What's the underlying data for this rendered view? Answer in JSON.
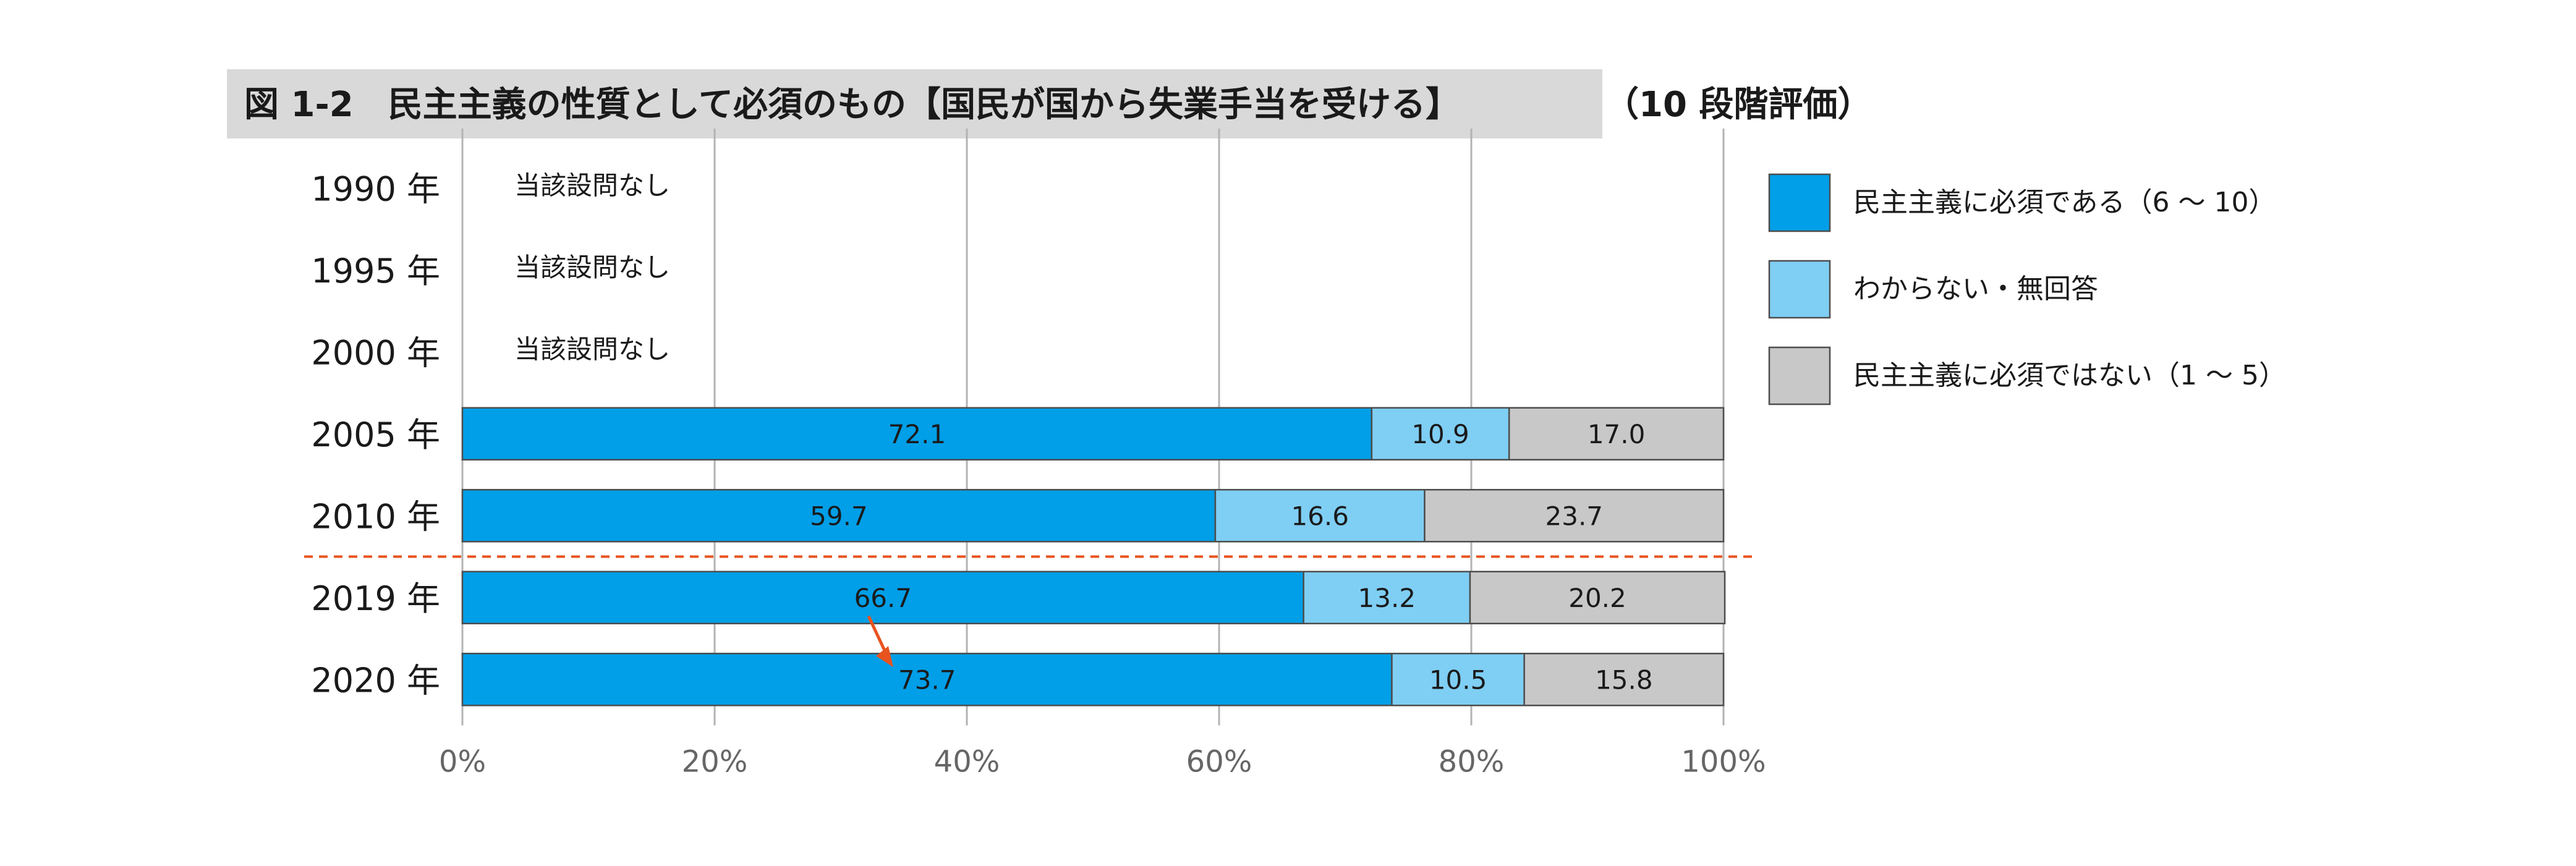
{
  "title": "図 1-2　民主主義の性質として必須のもの【国民が国から失業手当を受ける】",
  "title_suffix": "（10 段階評価）",
  "chart_data": {
    "type": "bar",
    "orientation": "horizontal",
    "stacked": true,
    "categories": [
      "1990 年",
      "1995 年",
      "2000 年",
      "2005 年",
      "2010 年",
      "2019 年",
      "2020 年"
    ],
    "notes": [
      "当該設問なし",
      "当該設問なし",
      "当該設問なし",
      null,
      null,
      null,
      null
    ],
    "series": [
      {
        "name": "民主主義に必須である（6 ～ 10）",
        "color": "#009fe8",
        "values": [
          null,
          null,
          null,
          72.1,
          59.7,
          66.7,
          73.7
        ]
      },
      {
        "name": "わからない・無回答",
        "color": "#7fcef4",
        "values": [
          null,
          null,
          null,
          10.9,
          16.6,
          13.2,
          10.5
        ]
      },
      {
        "name": "民主主義に必須ではない（1 ～ 5）",
        "color": "#c8c8c8",
        "values": [
          null,
          null,
          null,
          17.0,
          23.7,
          20.2,
          15.8
        ]
      }
    ],
    "xlim": [
      0,
      100
    ],
    "x_ticks": [
      "0%",
      "20%",
      "40%",
      "60%",
      "80%",
      "100%"
    ],
    "grid": true,
    "legend_position": "right",
    "separator": {
      "after_category": "2010 年",
      "style": "dashed",
      "color": "#e8531f"
    },
    "annotation": {
      "type": "arrow",
      "from_category": "2019 年",
      "to_category": "2020 年",
      "color": "#e8531f"
    }
  }
}
